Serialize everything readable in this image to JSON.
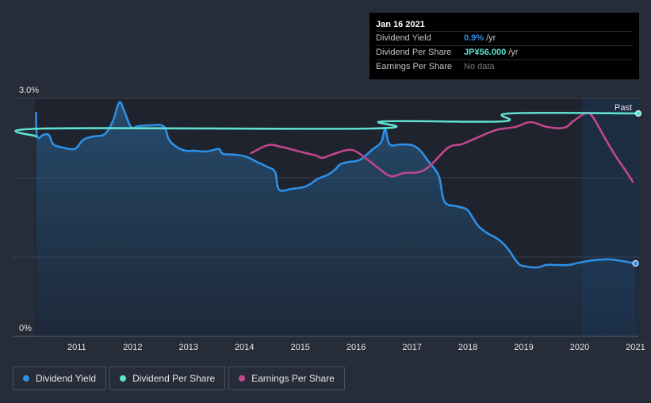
{
  "chart_data": {
    "type": "line",
    "y_axis": {
      "ylim": [
        0,
        3.0
      ],
      "unit": "%",
      "tick_labels": [
        "3.0%",
        "0%"
      ]
    },
    "x_axis": {
      "xlim": [
        2010.25,
        2021.05
      ],
      "tick_values": [
        2011,
        2012,
        2013,
        2014,
        2015,
        2016,
        2017,
        2018,
        2019,
        2020,
        2021
      ],
      "tick_labels": [
        "2011",
        "2012",
        "2013",
        "2014",
        "2015",
        "2016",
        "2017",
        "2018",
        "2019",
        "2020",
        "2021"
      ]
    },
    "past_label": "Past",
    "forecast_start": 2020.04,
    "grid": true,
    "series": [
      {
        "name": "Dividend Yield",
        "color": "#2d8fe6",
        "filled": true,
        "points": [
          [
            2010.27,
            2.82
          ],
          [
            2010.29,
            2.52
          ],
          [
            2010.4,
            2.54
          ],
          [
            2010.5,
            2.54
          ],
          [
            2010.58,
            2.42
          ],
          [
            2010.75,
            2.38
          ],
          [
            2010.92,
            2.36
          ],
          [
            2011.0,
            2.38
          ],
          [
            2011.12,
            2.48
          ],
          [
            2011.3,
            2.52
          ],
          [
            2011.5,
            2.55
          ],
          [
            2011.65,
            2.72
          ],
          [
            2011.76,
            2.95
          ],
          [
            2011.85,
            2.84
          ],
          [
            2011.97,
            2.64
          ],
          [
            2012.1,
            2.65
          ],
          [
            2012.3,
            2.66
          ],
          [
            2012.55,
            2.65
          ],
          [
            2012.65,
            2.48
          ],
          [
            2012.8,
            2.38
          ],
          [
            2012.95,
            2.34
          ],
          [
            2013.1,
            2.34
          ],
          [
            2013.3,
            2.33
          ],
          [
            2013.45,
            2.35
          ],
          [
            2013.55,
            2.36
          ],
          [
            2013.62,
            2.3
          ],
          [
            2013.85,
            2.29
          ],
          [
            2014.05,
            2.26
          ],
          [
            2014.22,
            2.2
          ],
          [
            2014.4,
            2.14
          ],
          [
            2014.55,
            2.07
          ],
          [
            2014.62,
            1.85
          ],
          [
            2014.85,
            1.86
          ],
          [
            2015.05,
            1.88
          ],
          [
            2015.18,
            1.92
          ],
          [
            2015.3,
            1.98
          ],
          [
            2015.5,
            2.04
          ],
          [
            2015.62,
            2.1
          ],
          [
            2015.72,
            2.17
          ],
          [
            2015.88,
            2.2
          ],
          [
            2016.0,
            2.21
          ],
          [
            2016.1,
            2.24
          ],
          [
            2016.3,
            2.36
          ],
          [
            2016.45,
            2.45
          ],
          [
            2016.52,
            2.61
          ],
          [
            2016.6,
            2.42
          ],
          [
            2016.8,
            2.42
          ],
          [
            2017.0,
            2.41
          ],
          [
            2017.15,
            2.34
          ],
          [
            2017.3,
            2.2
          ],
          [
            2017.48,
            2.02
          ],
          [
            2017.58,
            1.7
          ],
          [
            2017.8,
            1.64
          ],
          [
            2017.98,
            1.6
          ],
          [
            2018.1,
            1.48
          ],
          [
            2018.2,
            1.38
          ],
          [
            2018.35,
            1.3
          ],
          [
            2018.55,
            1.22
          ],
          [
            2018.72,
            1.1
          ],
          [
            2018.9,
            0.92
          ],
          [
            2019.05,
            0.88
          ],
          [
            2019.25,
            0.87
          ],
          [
            2019.4,
            0.9
          ],
          [
            2019.58,
            0.9
          ],
          [
            2019.8,
            0.9
          ],
          [
            2020.0,
            0.93
          ],
          [
            2020.25,
            0.96
          ],
          [
            2020.55,
            0.97
          ],
          [
            2020.75,
            0.95
          ],
          [
            2021.0,
            0.92
          ]
        ]
      },
      {
        "name": "Dividend Per Share",
        "color": "#5fe0d1",
        "filled": false,
        "points": [
          [
            2010.27,
            2.52
          ],
          [
            2010.42,
            2.62
          ],
          [
            2016.28,
            2.62
          ],
          [
            2016.48,
            2.71
          ],
          [
            2018.62,
            2.71
          ],
          [
            2018.75,
            2.81
          ],
          [
            2021.05,
            2.81
          ]
        ]
      },
      {
        "name": "Earnings Per Share",
        "color": "#c2468e",
        "filled": false,
        "points": [
          [
            2014.12,
            2.31
          ],
          [
            2014.42,
            2.41
          ],
          [
            2014.65,
            2.39
          ],
          [
            2014.88,
            2.35
          ],
          [
            2015.1,
            2.31
          ],
          [
            2015.28,
            2.28
          ],
          [
            2015.4,
            2.25
          ],
          [
            2015.6,
            2.3
          ],
          [
            2015.85,
            2.35
          ],
          [
            2016.0,
            2.33
          ],
          [
            2016.2,
            2.23
          ],
          [
            2016.4,
            2.12
          ],
          [
            2016.62,
            2.02
          ],
          [
            2016.86,
            2.06
          ],
          [
            2017.12,
            2.07
          ],
          [
            2017.32,
            2.15
          ],
          [
            2017.65,
            2.38
          ],
          [
            2017.88,
            2.42
          ],
          [
            2018.12,
            2.49
          ],
          [
            2018.5,
            2.6
          ],
          [
            2018.85,
            2.64
          ],
          [
            2019.12,
            2.7
          ],
          [
            2019.42,
            2.64
          ],
          [
            2019.72,
            2.63
          ],
          [
            2019.9,
            2.72
          ],
          [
            2020.1,
            2.81
          ],
          [
            2020.22,
            2.78
          ],
          [
            2020.42,
            2.54
          ],
          [
            2020.62,
            2.3
          ],
          [
            2020.85,
            2.06
          ],
          [
            2020.95,
            1.95
          ]
        ]
      }
    ],
    "tooltip": {
      "date": "Jan 16 2021",
      "rows": [
        {
          "label": "Dividend Yield",
          "value": "0.9%",
          "suffix": "/yr",
          "color": "#2d8fe6"
        },
        {
          "label": "Dividend Per Share",
          "value": "JP¥56.000",
          "suffix": "/yr",
          "color": "#5fe0d1"
        },
        {
          "label": "Earnings Per Share",
          "value": "No data",
          "suffix": "",
          "color": "#7a7a7a"
        }
      ]
    },
    "legend": [
      "Dividend Yield",
      "Dividend Per Share",
      "Earnings Per Share"
    ]
  }
}
